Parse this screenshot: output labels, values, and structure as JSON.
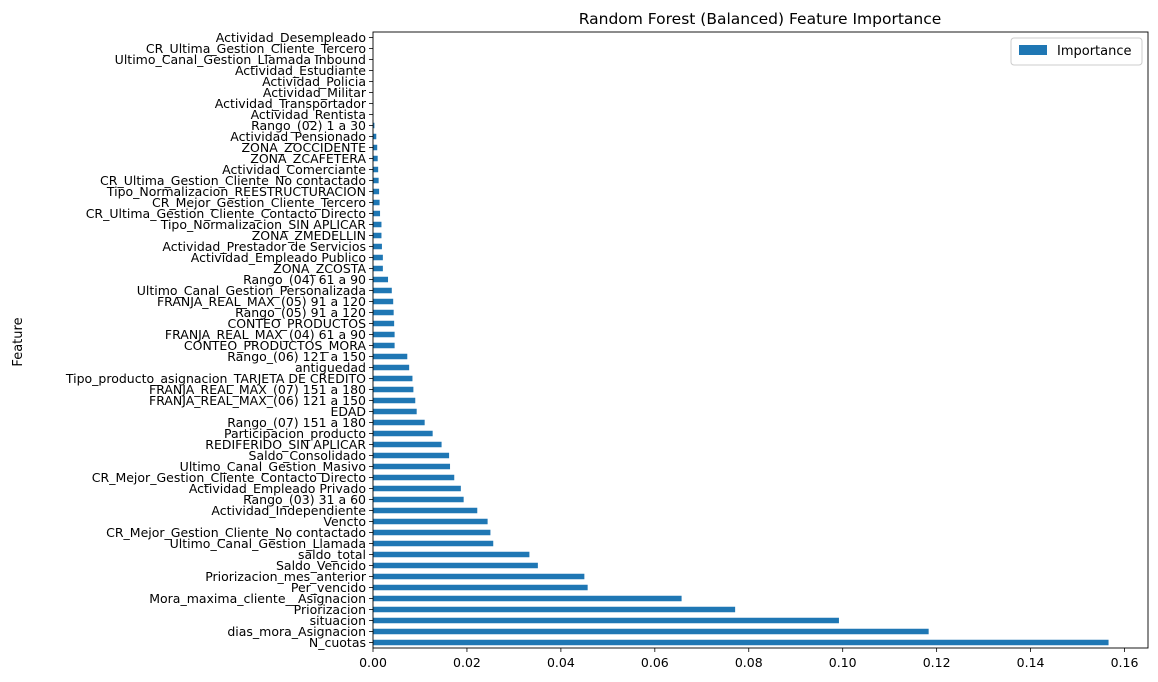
{
  "chart_data": {
    "type": "bar",
    "orientation": "horizontal",
    "title": "Random Forest (Balanced) Feature Importance",
    "xlabel": "",
    "ylabel": "Feature",
    "xlim": [
      0,
      0.165
    ],
    "xticks": [
      "0.00",
      "0.02",
      "0.04",
      "0.06",
      "0.08",
      "0.10",
      "0.12",
      "0.14",
      "0.16"
    ],
    "grid": false,
    "legend": {
      "position": "top-right",
      "entries": [
        "Importance"
      ]
    },
    "bar_color": "#1f77b4",
    "categories": [
      "N_cuotas",
      "dias_mora_Asignacion",
      "situacion",
      "Priorizacion",
      "Mora_maxima_cliente__Asignacion",
      "Per_vencido",
      "Priorizacion_mes_anterior",
      "Saldo_Vencido",
      "saldo_total",
      "Ultimo_Canal_Gestion_Llamada",
      "CR_Mejor_Gestion_Cliente_No contactado",
      "Vencto",
      "Actividad_Independiente",
      "Rango_(03) 31 a 60",
      "Actividad_Empleado Privado",
      "CR_Mejor_Gestion_Cliente_Contacto Directo",
      "Ultimo_Canal_Gestion_Masivo",
      "Saldo_Consolidado",
      "REDIFERIDO_SIN APLICAR",
      "Participacion_producto",
      "Rango_(07) 151 a 180",
      "EDAD",
      "FRANJA_REAL_MAX_(06) 121 a 150",
      "FRANJA_REAL_MAX_(07) 151 a 180",
      "Tipo_producto_asignacion_TARJETA DE CREDITO",
      "antiguedad",
      "Rango_(06) 121 a 150",
      "CONTEO_PRODUCTOS_MORA",
      "FRANJA_REAL_MAX_(04) 61 a 90",
      "CONTEO_PRODUCTOS",
      "Rango_(05) 91 a 120",
      "FRANJA_REAL_MAX_(05) 91 a 120",
      "Ultimo_Canal_Gestion_Personalizada",
      "Rango_(04) 61 a 90",
      "ZONA_ZCOSTA",
      "Actividad_Empleado Publico",
      "Actividad_Prestador de Servicios",
      "ZONA_ZMEDELLIN",
      "Tipo_Normalizacion_SIN APLICAR",
      "CR_Ultima_Gestion_Cliente_Contacto Directo",
      "CR_Mejor_Gestion_Cliente_Tercero",
      "Tipo_Normalizacion_REESTRUCTURACION",
      "CR_Ultima_Gestion_Cliente_No contactado",
      "Actividad_Comerciante",
      "ZONA_ZCAFETERA",
      "ZONA_ZOCCIDENTE",
      "Actividad_Pensionado",
      "Rango_(02) 1 a 30",
      "Actividad_Rentista",
      "Actividad_Transportador",
      "Actividad_Militar",
      "Actividad_Policia",
      "Actividad_Estudiante",
      "Ultimo_Canal_Gestion_Llamada Inbound",
      "CR_Ultima_Gestion_Cliente_Tercero",
      "Actividad_Desempleado"
    ],
    "series": [
      {
        "name": "Importance",
        "values": [
          0.1566,
          0.1183,
          0.0992,
          0.0771,
          0.0657,
          0.0457,
          0.045,
          0.0351,
          0.0333,
          0.0256,
          0.025,
          0.0244,
          0.0222,
          0.0193,
          0.0187,
          0.0173,
          0.0164,
          0.0162,
          0.0146,
          0.0127,
          0.011,
          0.0093,
          0.009,
          0.0086,
          0.0084,
          0.0077,
          0.0073,
          0.0046,
          0.0046,
          0.0045,
          0.0044,
          0.0043,
          0.004,
          0.0032,
          0.0021,
          0.0021,
          0.0019,
          0.0018,
          0.0018,
          0.0015,
          0.0014,
          0.0013,
          0.0012,
          0.0011,
          0.001,
          0.0009,
          0.0007,
          0.0003,
          0.0001,
          0.0001,
          0.0,
          0.0,
          0.0,
          0.0,
          0.0,
          0.0
        ]
      }
    ]
  }
}
